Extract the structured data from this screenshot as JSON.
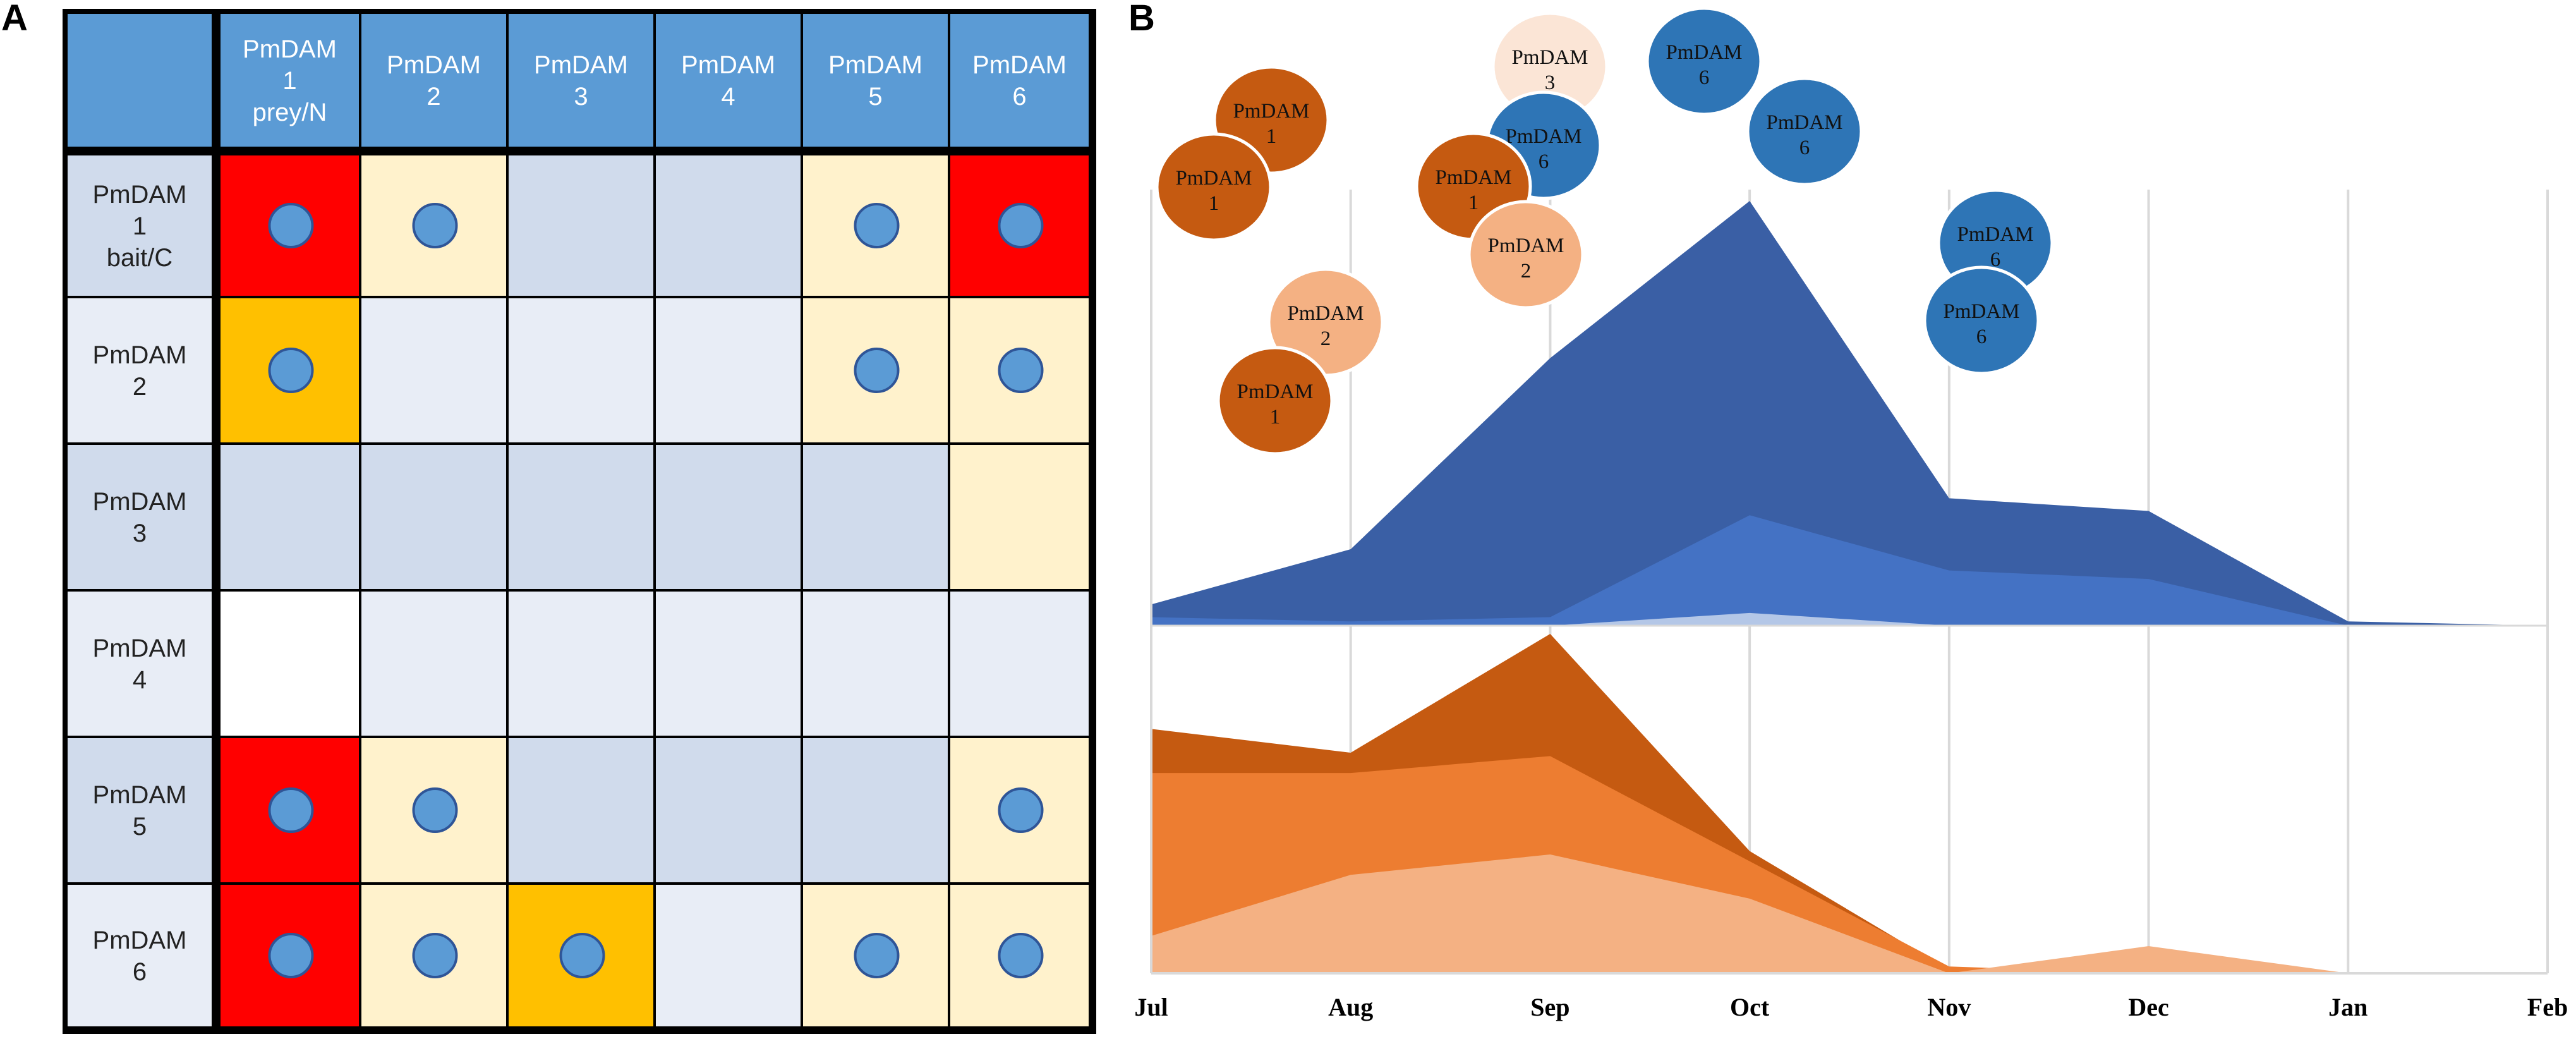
{
  "panel_a_label": "A",
  "panel_b_label": "B",
  "colors": {
    "header_blue": "#5B9BD5",
    "dot_blue": "#5B9BD5",
    "red": "#FF0000",
    "orange": "#FFC000",
    "light_orange": "#FFF2CC",
    "blue_dark_row": "#D0DBEC",
    "blue_light_row": "#E8EDF6",
    "white": "#FFFFFF"
  },
  "chart_data": [
    {
      "type": "table",
      "title": "",
      "column_header_line1": [
        "PmDAM",
        "PmDAM",
        "PmDAM",
        "PmDAM",
        "PmDAM",
        "PmDAM"
      ],
      "column_header_line2": [
        "1",
        "2",
        "3",
        "4",
        "5",
        "6"
      ],
      "column_header_line3": [
        "prey/N",
        "",
        "",
        "",
        "",
        ""
      ],
      "row_header_line1": [
        "PmDAM",
        "PmDAM",
        "PmDAM",
        "PmDAM",
        "PmDAM",
        "PmDAM"
      ],
      "row_header_line2": [
        "1",
        "2",
        "3",
        "4",
        "5",
        "6"
      ],
      "row_header_line3": [
        "bait/C",
        "",
        "",
        "",
        "",
        ""
      ],
      "cell_levels": [
        [
          "red",
          "light",
          "none",
          "none",
          "light",
          "red"
        ],
        [
          "orange",
          "none",
          "none",
          "none",
          "light",
          "light"
        ],
        [
          "none",
          "none",
          "none",
          "none",
          "none",
          "light"
        ],
        [
          "white",
          "none",
          "none",
          "none",
          "none",
          "none"
        ],
        [
          "red",
          "light",
          "none",
          "none",
          "none",
          "light"
        ],
        [
          "red",
          "light",
          "orange",
          "none",
          "light",
          "light"
        ]
      ],
      "dots": [
        [
          1,
          1,
          0,
          0,
          1,
          1
        ],
        [
          1,
          0,
          0,
          0,
          1,
          1
        ],
        [
          0,
          0,
          0,
          0,
          0,
          0
        ],
        [
          0,
          0,
          0,
          0,
          0,
          0
        ],
        [
          1,
          1,
          0,
          0,
          0,
          1
        ],
        [
          1,
          1,
          1,
          0,
          1,
          1
        ]
      ]
    },
    {
      "type": "area",
      "title": "",
      "categories": [
        "Jul",
        "Aug",
        "Sep",
        "Oct",
        "Nov",
        "Dec",
        "Jan",
        "Feb"
      ],
      "upper_ylim": [
        0,
        100
      ],
      "lower_ylim": [
        0,
        100
      ],
      "upper_series": [
        {
          "name": "PmDAM 6 (dark blue)",
          "color": "#3A5FA5",
          "values": [
            5,
            18,
            63,
            100,
            30,
            27,
            1,
            0
          ]
        },
        {
          "name": "PmDAM 6 (medium blue)",
          "color": "#4472C4",
          "values": [
            2,
            1,
            2,
            26,
            13,
            11,
            0,
            0
          ]
        },
        {
          "name": "PmDAM 3 (light blue)",
          "color": "#B4C7E7",
          "values": [
            0,
            0,
            0,
            3,
            0,
            0,
            0,
            0
          ]
        }
      ],
      "lower_series": [
        {
          "name": "PmDAM 1",
          "color": "#C55A11",
          "values": [
            72,
            65,
            100,
            36,
            1,
            0,
            0,
            0
          ]
        },
        {
          "name": "PmDAM 2",
          "color": "#ED7D31",
          "values": [
            59,
            59,
            64,
            33,
            2,
            0,
            0,
            0
          ]
        },
        {
          "name": "PmDAM 2 (light)",
          "color": "#F4B183",
          "values": [
            11,
            29,
            35,
            22,
            0,
            8,
            0,
            0
          ]
        }
      ],
      "bubble_groups": [
        {
          "bubbles": [
            {
              "line1": "PmDAM",
              "line2": "1",
              "color": "#C55A11"
            },
            {
              "line1": "PmDAM",
              "line2": "1",
              "color": "#C55A11"
            }
          ]
        },
        {
          "bubbles": [
            {
              "line1": "PmDAM",
              "line2": "2",
              "color": "#F4B183"
            },
            {
              "line1": "PmDAM",
              "line2": "1",
              "color": "#C55A11"
            }
          ]
        },
        {
          "bubbles": [
            {
              "line1": "PmDAM",
              "line2": "3",
              "color": "#FBE5D6"
            },
            {
              "line1": "PmDAM",
              "line2": "6",
              "color": "#2E75B6"
            },
            {
              "line1": "PmDAM",
              "line2": "1",
              "color": "#C55A11"
            },
            {
              "line1": "PmDAM",
              "line2": "2",
              "color": "#F4B183"
            }
          ]
        },
        {
          "bubbles": [
            {
              "line1": "PmDAM",
              "line2": "6",
              "color": "#2E75B6"
            },
            {
              "line1": "PmDAM",
              "line2": "6",
              "color": "#2E75B6"
            }
          ]
        },
        {
          "bubbles": [
            {
              "line1": "PmDAM",
              "line2": "6",
              "color": "#2E75B6"
            },
            {
              "line1": "PmDAM",
              "line2": "6",
              "color": "#2E75B6"
            }
          ]
        }
      ]
    }
  ]
}
